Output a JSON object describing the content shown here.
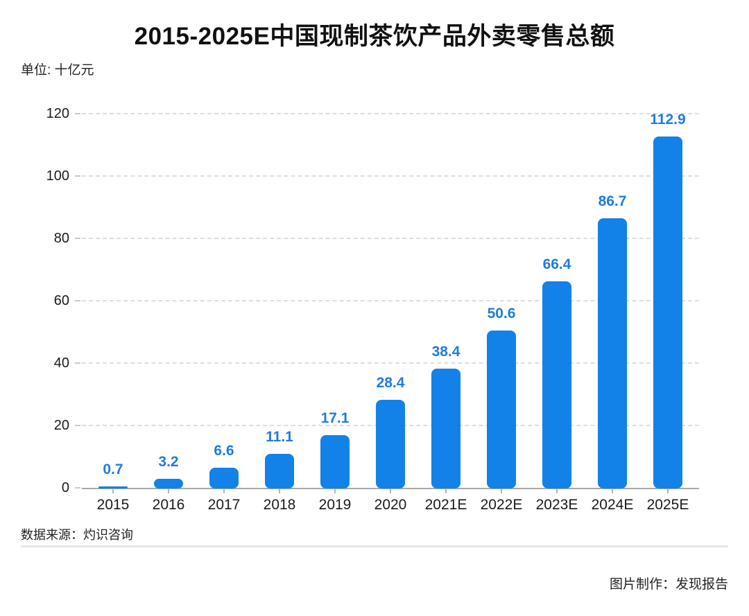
{
  "title": "2015-2025E中国现制茶饮产品外卖零售总额",
  "unit_label": "单位: 十亿元",
  "source_label": "数据来源：灼识咨询",
  "credit_label": "图片制作：发现报告",
  "colors": {
    "bar": "#1282e8",
    "value_label": "#1e7cde",
    "grid": "#dedede",
    "axis": "#a8a8a8",
    "text": "#1a1a1a"
  },
  "chart_data": {
    "type": "bar",
    "title": "2015-2025E中国现制茶饮产品外卖零售总额",
    "categories": [
      "2015",
      "2016",
      "2017",
      "2018",
      "2019",
      "2020",
      "2021E",
      "2022E",
      "2023E",
      "2024E",
      "2025E"
    ],
    "values": [
      0.7,
      3.2,
      6.6,
      11.1,
      17.1,
      28.4,
      38.4,
      50.6,
      66.4,
      86.7,
      112.9
    ],
    "value_labels": [
      "0.7",
      "3.2",
      "6.6",
      "11.1",
      "17.1",
      "28.4",
      "38.4",
      "50.6",
      "66.4",
      "86.7",
      "112.9"
    ],
    "xlabel": "",
    "ylabel": "单位: 十亿元",
    "ylim": [
      0,
      120
    ],
    "yticks": [
      0,
      20,
      40,
      60,
      80,
      100,
      120
    ],
    "grid": "horizontal-dashed",
    "legend_position": "none",
    "bar_corner_radius": 8
  }
}
